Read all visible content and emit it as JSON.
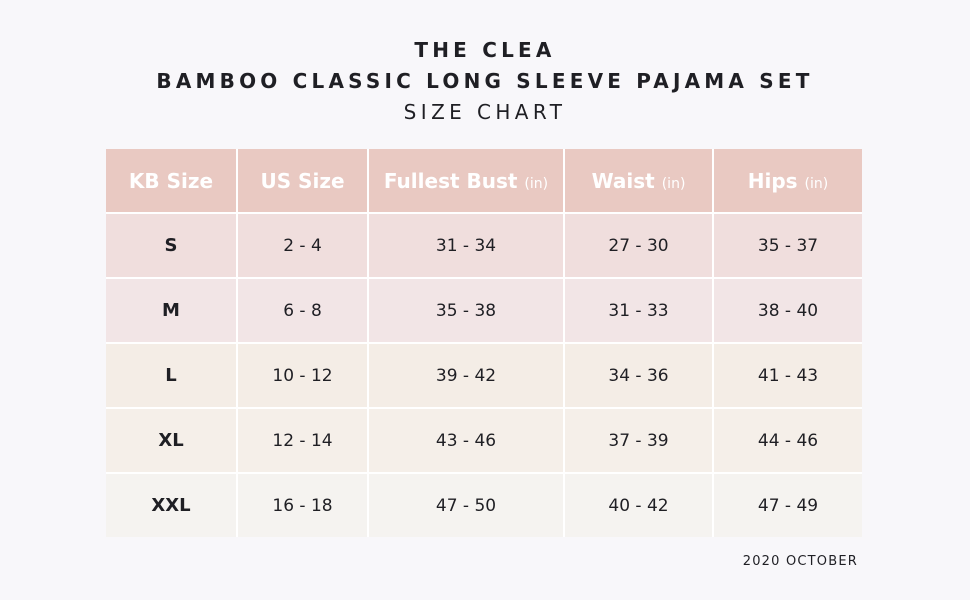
{
  "title": {
    "line1": "THE CLEA",
    "line2": "BAMBOO CLASSIC LONG SLEEVE PAJAMA SET",
    "line3": "SIZE CHART"
  },
  "table": {
    "headers": [
      {
        "label": "KB Size",
        "unit": ""
      },
      {
        "label": "US Size",
        "unit": ""
      },
      {
        "label": "Fullest Bust",
        "unit": "(in)"
      },
      {
        "label": "Waist",
        "unit": "(in)"
      },
      {
        "label": "Hips",
        "unit": "(in)"
      }
    ],
    "rows": [
      {
        "kb": "S",
        "us": "2 - 4",
        "bust": "31 - 34",
        "waist": "27 - 30",
        "hips": "35 - 37",
        "bg": "#f0dedd"
      },
      {
        "kb": "M",
        "us": "6 - 8",
        "bust": "35 - 38",
        "waist": "31 - 33",
        "hips": "38 - 40",
        "bg": "#f2e5e6"
      },
      {
        "kb": "L",
        "us": "10 - 12",
        "bust": "39 - 42",
        "waist": "34 - 36",
        "hips": "41 - 43",
        "bg": "#f4ede6"
      },
      {
        "kb": "XL",
        "us": "12 - 14",
        "bust": "43 - 46",
        "waist": "37 - 39",
        "hips": "44 - 46",
        "bg": "#f5efe9"
      },
      {
        "kb": "XXL",
        "us": "16 - 18",
        "bust": "47 - 50",
        "waist": "40 - 42",
        "hips": "47 - 49",
        "bg": "#f5f3f0"
      }
    ]
  },
  "footer": "2020 OCTOBER",
  "colors": {
    "header_bg": "#e9c9c2",
    "page_bg": "#f8f7fa",
    "text": "#1f1f24"
  }
}
